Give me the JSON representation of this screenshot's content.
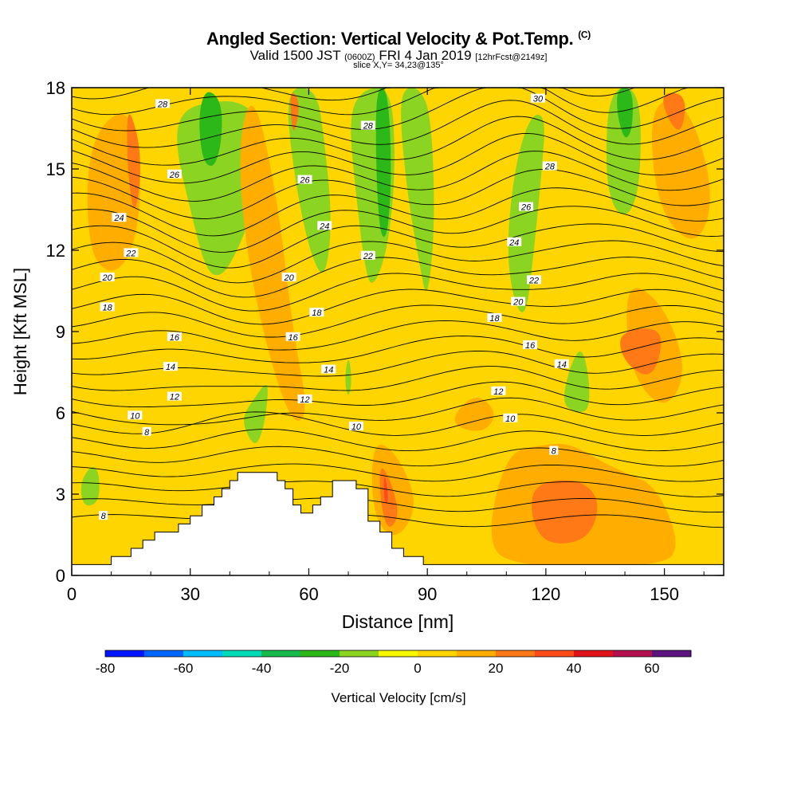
{
  "title": {
    "main": "Angled Section: Vertical Velocity & Pot.Temp.",
    "units": "(C)",
    "valid_prefix": "Valid 1500 JST",
    "valid_utc": "(0600Z)",
    "valid_date": "FRI 4 Jan 2019",
    "forecast": "[12hrFcst@2149z]",
    "slice": "slice X,Y= 34,23@135°"
  },
  "chart_data": {
    "type": "heatmap",
    "xlabel": "Distance [nm]",
    "ylabel": "Height [Kft MSL]",
    "xlim": [
      0,
      165
    ],
    "ylim": [
      0,
      18
    ],
    "xticks": [
      0,
      30,
      60,
      90,
      120,
      150
    ],
    "yticks": [
      0,
      3,
      6,
      9,
      12,
      15,
      18
    ],
    "colorbar": {
      "label": "Vertical Velocity [cm/s]",
      "ticks": [
        -80,
        -60,
        -40,
        -20,
        0,
        20,
        40,
        60
      ],
      "bounds": [
        -80,
        -70,
        -60,
        -50,
        -40,
        -30,
        -20,
        -10,
        0,
        10,
        20,
        30,
        40,
        50,
        60,
        70
      ],
      "colors": [
        "#0015ff",
        "#0066ff",
        "#00bbff",
        "#00dbb8",
        "#16bb4c",
        "#2db81a",
        "#8bd421",
        "#f7f700",
        "#ffd500",
        "#ffae00",
        "#ff7a16",
        "#ff4a1a",
        "#e0121a",
        "#b5104e",
        "#5b1480"
      ]
    },
    "theta_contour_labels": [
      {
        "x": 8,
        "y": 2.2,
        "value": "8"
      },
      {
        "x": 19,
        "y": 5.3,
        "value": "8"
      },
      {
        "x": 122,
        "y": 4.6,
        "value": "8"
      },
      {
        "x": 16,
        "y": 5.9,
        "value": "10"
      },
      {
        "x": 72,
        "y": 5.5,
        "value": "10"
      },
      {
        "x": 111,
        "y": 5.8,
        "value": "10"
      },
      {
        "x": 26,
        "y": 6.6,
        "value": "12"
      },
      {
        "x": 59,
        "y": 6.5,
        "value": "12"
      },
      {
        "x": 108,
        "y": 6.8,
        "value": "12"
      },
      {
        "x": 25,
        "y": 7.7,
        "value": "14"
      },
      {
        "x": 65,
        "y": 7.6,
        "value": "14"
      },
      {
        "x": 124,
        "y": 7.8,
        "value": "14"
      },
      {
        "x": 26,
        "y": 8.8,
        "value": "16"
      },
      {
        "x": 56,
        "y": 8.8,
        "value": "16"
      },
      {
        "x": 116,
        "y": 8.5,
        "value": "16"
      },
      {
        "x": 9,
        "y": 9.9,
        "value": "18"
      },
      {
        "x": 62,
        "y": 9.7,
        "value": "18"
      },
      {
        "x": 107,
        "y": 9.5,
        "value": "18"
      },
      {
        "x": 9,
        "y": 11.0,
        "value": "20"
      },
      {
        "x": 55,
        "y": 11.0,
        "value": "20"
      },
      {
        "x": 113,
        "y": 10.1,
        "value": "20"
      },
      {
        "x": 15,
        "y": 11.9,
        "value": "22"
      },
      {
        "x": 75,
        "y": 11.8,
        "value": "22"
      },
      {
        "x": 117,
        "y": 10.9,
        "value": "22"
      },
      {
        "x": 12,
        "y": 13.2,
        "value": "24"
      },
      {
        "x": 64,
        "y": 12.9,
        "value": "24"
      },
      {
        "x": 112,
        "y": 12.3,
        "value": "24"
      },
      {
        "x": 26,
        "y": 14.8,
        "value": "26"
      },
      {
        "x": 59,
        "y": 14.6,
        "value": "26"
      },
      {
        "x": 115,
        "y": 13.6,
        "value": "26"
      },
      {
        "x": 23,
        "y": 17.4,
        "value": "28"
      },
      {
        "x": 75,
        "y": 16.6,
        "value": "28"
      },
      {
        "x": 121,
        "y": 15.1,
        "value": "28"
      },
      {
        "x": 118,
        "y": 17.6,
        "value": "30"
      }
    ],
    "vertical_velocity_regions": [
      {
        "value": -20,
        "points": [
          [
            26,
            16
          ],
          [
            30,
            13.5
          ],
          [
            34,
            11.2
          ],
          [
            38,
            11
          ],
          [
            42,
            12
          ],
          [
            46,
            13.5
          ],
          [
            48,
            15
          ],
          [
            47,
            17
          ],
          [
            42,
            17.5
          ],
          [
            36,
            17.5
          ],
          [
            28,
            17.2
          ]
        ]
      },
      {
        "value": -30,
        "points": [
          [
            33,
            15.3
          ],
          [
            36,
            15
          ],
          [
            38,
            16
          ],
          [
            38,
            17.5
          ],
          [
            34,
            18
          ],
          [
            32,
            17
          ]
        ]
      },
      {
        "value": -20,
        "points": [
          [
            54,
            18
          ],
          [
            56,
            15
          ],
          [
            60,
            12
          ],
          [
            64,
            10.8
          ],
          [
            66,
            13
          ],
          [
            64,
            16
          ],
          [
            62,
            18
          ]
        ]
      },
      {
        "value": -20,
        "points": [
          [
            70,
            17
          ],
          [
            72,
            14
          ],
          [
            74,
            11.5
          ],
          [
            76,
            10.5
          ],
          [
            80,
            12
          ],
          [
            82,
            15
          ],
          [
            81,
            18
          ],
          [
            74,
            18
          ]
        ]
      },
      {
        "value": -30,
        "points": [
          [
            78,
            12.5
          ],
          [
            80,
            12.5
          ],
          [
            81,
            15
          ],
          [
            80,
            18
          ],
          [
            77,
            18
          ],
          [
            77,
            15
          ]
        ]
      },
      {
        "value": -20,
        "points": [
          [
            83,
            17
          ],
          [
            85,
            14
          ],
          [
            88,
            11.5
          ],
          [
            90,
            10
          ],
          [
            92,
            13
          ],
          [
            91,
            17
          ],
          [
            88,
            18
          ],
          [
            84,
            18
          ]
        ]
      },
      {
        "value": -20,
        "points": [
          [
            110,
            12
          ],
          [
            112,
            10
          ],
          [
            115,
            9.5
          ],
          [
            117,
            12
          ],
          [
            119,
            15
          ],
          [
            120,
            17
          ],
          [
            116,
            17
          ],
          [
            112,
            15
          ]
        ]
      },
      {
        "value": -20,
        "points": [
          [
            135,
            15
          ],
          [
            137,
            13.5
          ],
          [
            141,
            13.2
          ],
          [
            144,
            14.5
          ],
          [
            144,
            18
          ],
          [
            136,
            18
          ]
        ]
      },
      {
        "value": -30,
        "points": [
          [
            138,
            17
          ],
          [
            140,
            16
          ],
          [
            142,
            16.5
          ],
          [
            142,
            18
          ],
          [
            138,
            18
          ]
        ]
      },
      {
        "value": -20,
        "points": [
          [
            43,
            5.8
          ],
          [
            46,
            6.5
          ],
          [
            50,
            7.3
          ],
          [
            49,
            5.7
          ],
          [
            47,
            4.8
          ],
          [
            45,
            5.0
          ]
        ]
      },
      {
        "value": -20,
        "points": [
          [
            2,
            3.4
          ],
          [
            5,
            4.1
          ],
          [
            7,
            3.8
          ],
          [
            7,
            2.7
          ],
          [
            3,
            2.5
          ]
        ]
      },
      {
        "value": -20,
        "points": [
          [
            124,
            6.3
          ],
          [
            126,
            7.7
          ],
          [
            129,
            8.5
          ],
          [
            131,
            7.3
          ],
          [
            131,
            6.1
          ],
          [
            128,
            6.0
          ]
        ]
      },
      {
        "value": -20,
        "points": [
          [
            69,
            7.2
          ],
          [
            70,
            8.2
          ],
          [
            71,
            7.2
          ],
          [
            70,
            6.5
          ]
        ]
      },
      {
        "value": 10,
        "points": [
          [
            4,
            16
          ],
          [
            14,
            17.5
          ],
          [
            18,
            15
          ],
          [
            16,
            12
          ],
          [
            10,
            11
          ],
          [
            4,
            12
          ]
        ]
      },
      {
        "value": 10,
        "points": [
          [
            46,
            18
          ],
          [
            52,
            14
          ],
          [
            56,
            9
          ],
          [
            60,
            6
          ],
          [
            56,
            5.5
          ],
          [
            50,
            8
          ],
          [
            44,
            12
          ],
          [
            42,
            16
          ]
        ]
      },
      {
        "value": 10,
        "points": [
          [
            140,
            11
          ],
          [
            150,
            10
          ],
          [
            156,
            7.5
          ],
          [
            150,
            6
          ],
          [
            141,
            7.5
          ]
        ]
      },
      {
        "value": 10,
        "points": [
          [
            146,
            17.5
          ],
          [
            156,
            17.5
          ],
          [
            163,
            14
          ],
          [
            158,
            12
          ],
          [
            148,
            13.5
          ]
        ]
      },
      {
        "value": 10,
        "points": [
          [
            110,
            4.5
          ],
          [
            118,
            4.8
          ],
          [
            126,
            4.9
          ],
          [
            134,
            4.2
          ],
          [
            140,
            3.8
          ],
          [
            148,
            3.3
          ],
          [
            154,
            1.2
          ],
          [
            150,
            0.3
          ],
          [
            110,
            0.3
          ],
          [
            105,
            1.5
          ]
        ]
      },
      {
        "value": 10,
        "points": [
          [
            76,
            5.0
          ],
          [
            82,
            4.6
          ],
          [
            88,
            2.6
          ],
          [
            82,
            1.2
          ],
          [
            76,
            2.2
          ]
        ]
      },
      {
        "value": 10,
        "points": [
          [
            95,
            5.6
          ],
          [
            102,
            6.8
          ],
          [
            108,
            6.0
          ],
          [
            104,
            5.2
          ]
        ]
      },
      {
        "value": 20,
        "points": [
          [
            14,
            17.6
          ],
          [
            18,
            15.5
          ],
          [
            16,
            13
          ],
          [
            14,
            15
          ]
        ]
      },
      {
        "value": 20,
        "points": [
          [
            150,
            8.8
          ],
          [
            146,
            9.2
          ],
          [
            138,
            8.9
          ],
          [
            140,
            7.8
          ],
          [
            147,
            7.2
          ]
        ]
      },
      {
        "value": 20,
        "points": [
          [
            117,
            3.4
          ],
          [
            128,
            3.6
          ],
          [
            134,
            2.8
          ],
          [
            131,
            1.3
          ],
          [
            120,
            1.1
          ],
          [
            116,
            2.2
          ]
        ]
      },
      {
        "value": 20,
        "points": [
          [
            78,
            4.2
          ],
          [
            81,
            3.4
          ],
          [
            83,
            2.2
          ],
          [
            80,
            1.6
          ],
          [
            78,
            2.8
          ]
        ]
      },
      {
        "value": 20,
        "points": [
          [
            55,
            18
          ],
          [
            56,
            16
          ],
          [
            58,
            17.5
          ]
        ]
      },
      {
        "value": 20,
        "points": [
          [
            148,
            17.8
          ],
          [
            154,
            16
          ],
          [
            156,
            17.8
          ]
        ]
      },
      {
        "value": 30,
        "points": [
          [
            79,
            3.8
          ],
          [
            80,
            3.2
          ],
          [
            80,
            2.6
          ],
          [
            79,
            2.8
          ]
        ]
      }
    ],
    "terrain_kft": [
      [
        0,
        0.4
      ],
      [
        10,
        0.4
      ],
      [
        10,
        0.7
      ],
      [
        15,
        0.7
      ],
      [
        15,
        1.0
      ],
      [
        18,
        1.0
      ],
      [
        18,
        1.3
      ],
      [
        21,
        1.3
      ],
      [
        21,
        1.6
      ],
      [
        27,
        1.6
      ],
      [
        27,
        1.9
      ],
      [
        30,
        1.9
      ],
      [
        30,
        2.2
      ],
      [
        33,
        2.2
      ],
      [
        33,
        2.6
      ],
      [
        36,
        2.6
      ],
      [
        36,
        2.9
      ],
      [
        38,
        2.9
      ],
      [
        38,
        3.2
      ],
      [
        40,
        3.2
      ],
      [
        40,
        3.5
      ],
      [
        42,
        3.5
      ],
      [
        42,
        3.8
      ],
      [
        52,
        3.8
      ],
      [
        52,
        3.5
      ],
      [
        54,
        3.5
      ],
      [
        54,
        3.2
      ],
      [
        56,
        3.2
      ],
      [
        56,
        2.6
      ],
      [
        58,
        2.6
      ],
      [
        58,
        2.3
      ],
      [
        61,
        2.3
      ],
      [
        61,
        2.6
      ],
      [
        63,
        2.6
      ],
      [
        63,
        2.9
      ],
      [
        66,
        2.9
      ],
      [
        66,
        3.5
      ],
      [
        72,
        3.5
      ],
      [
        72,
        3.2
      ],
      [
        75,
        3.2
      ],
      [
        75,
        2.0
      ],
      [
        78,
        2.0
      ],
      [
        78,
        1.6
      ],
      [
        81,
        1.6
      ],
      [
        81,
        1.0
      ],
      [
        84,
        1.0
      ],
      [
        84,
        0.7
      ],
      [
        89,
        0.7
      ],
      [
        89,
        0.4
      ],
      [
        165,
        0.4
      ]
    ]
  }
}
